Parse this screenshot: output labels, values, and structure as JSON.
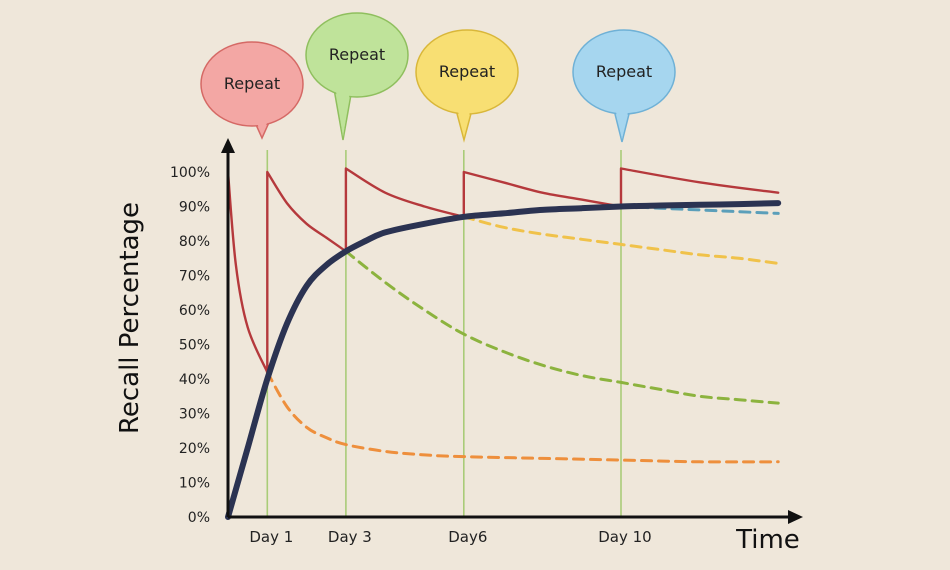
{
  "colors": {
    "background": "#efe7da",
    "sawtooth": "#b5393c",
    "trend": "#2b3352",
    "guide": "#a9cc78",
    "axis": "#111111",
    "decay": [
      "#ee8f3c",
      "#8cb33e",
      "#f0c24a",
      "#5b9fba"
    ],
    "bubble_fill": [
      "#f3a7a4",
      "#bfe39a",
      "#f8df73",
      "#a6d6ef"
    ],
    "bubble_stroke": [
      "#d56965",
      "#8fbf5e",
      "#d9b73a",
      "#6fb1d6"
    ]
  },
  "chart_data": {
    "type": "line",
    "title": "",
    "xlabel": "Time",
    "ylabel": "Recall Percentage",
    "xlim": [
      0,
      14
    ],
    "ylim": [
      0,
      100
    ],
    "y_ticks": [
      "0%",
      "10%",
      "20%",
      "30%",
      "40%",
      "50%",
      "60%",
      "70%",
      "80%",
      "90%",
      "100%"
    ],
    "x_ticks": [
      {
        "x": 1,
        "label": "Day 1"
      },
      {
        "x": 3,
        "label": "Day 3"
      },
      {
        "x": 6,
        "label": "Day6"
      },
      {
        "x": 10,
        "label": "Day 10"
      }
    ],
    "repeat_labels": [
      {
        "x": 1,
        "label": "Repeat"
      },
      {
        "x": 3,
        "label": "Repeat"
      },
      {
        "x": 6,
        "label": "Repeat"
      },
      {
        "x": 10,
        "label": "Repeat"
      }
    ],
    "series": [
      {
        "key": "sawtooth",
        "style": "solid",
        "points": [
          [
            0,
            100
          ],
          [
            0.2,
            73
          ],
          [
            0.5,
            55
          ],
          [
            1,
            42
          ],
          [
            1,
            100
          ],
          [
            1.5,
            91
          ],
          [
            2,
            85
          ],
          [
            2.5,
            81
          ],
          [
            3,
            77
          ],
          [
            3,
            101
          ],
          [
            4,
            94
          ],
          [
            5,
            90
          ],
          [
            6,
            87
          ],
          [
            6,
            100
          ],
          [
            7,
            97
          ],
          [
            8,
            94
          ],
          [
            9,
            92
          ],
          [
            10,
            90
          ],
          [
            10,
            101
          ],
          [
            12,
            97
          ],
          [
            14,
            94
          ]
        ]
      },
      {
        "key": "trend",
        "style": "solid",
        "points": [
          [
            0,
            0
          ],
          [
            0.5,
            20
          ],
          [
            1,
            40
          ],
          [
            1.5,
            56
          ],
          [
            2,
            67
          ],
          [
            2.5,
            73
          ],
          [
            3,
            77
          ],
          [
            3.5,
            80
          ],
          [
            4,
            82.5
          ],
          [
            5,
            85
          ],
          [
            6,
            87
          ],
          [
            7,
            88
          ],
          [
            8,
            89
          ],
          [
            9,
            89.5
          ],
          [
            10,
            90
          ],
          [
            11,
            90.3
          ],
          [
            12,
            90.5
          ],
          [
            13,
            90.7
          ],
          [
            14,
            91
          ]
        ]
      },
      {
        "key": "decay_day1",
        "style": "dashed",
        "points": [
          [
            1,
            42
          ],
          [
            1.5,
            32
          ],
          [
            2,
            26
          ],
          [
            2.5,
            23
          ],
          [
            3,
            21
          ],
          [
            4,
            19
          ],
          [
            5,
            18
          ],
          [
            6,
            17.5
          ],
          [
            8,
            17
          ],
          [
            10,
            16.5
          ],
          [
            12,
            16
          ],
          [
            14,
            16
          ]
        ]
      },
      {
        "key": "decay_day3",
        "style": "dashed",
        "points": [
          [
            3,
            77
          ],
          [
            4,
            68
          ],
          [
            5,
            60
          ],
          [
            6,
            53
          ],
          [
            7,
            48
          ],
          [
            8,
            44
          ],
          [
            9,
            41
          ],
          [
            10,
            39
          ],
          [
            11,
            37
          ],
          [
            12,
            35
          ],
          [
            13,
            34
          ],
          [
            14,
            33
          ]
        ]
      },
      {
        "key": "decay_day6",
        "style": "dashed",
        "points": [
          [
            6,
            87
          ],
          [
            7,
            84
          ],
          [
            8,
            82
          ],
          [
            9,
            80.5
          ],
          [
            10,
            79
          ],
          [
            11,
            77.5
          ],
          [
            12,
            76
          ],
          [
            13,
            75
          ],
          [
            14,
            73.5
          ]
        ]
      },
      {
        "key": "decay_day10",
        "style": "dashed",
        "points": [
          [
            10,
            90
          ],
          [
            11,
            89.5
          ],
          [
            12,
            89
          ],
          [
            13,
            88.5
          ],
          [
            14,
            88
          ]
        ]
      }
    ]
  }
}
